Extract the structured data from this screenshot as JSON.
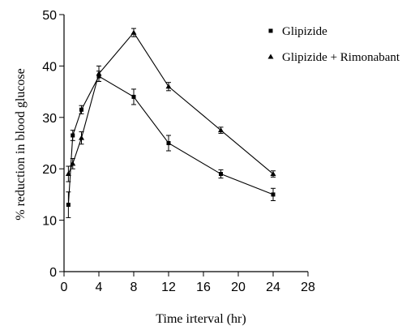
{
  "chart_data": {
    "type": "line",
    "xlabel": "Time irterval (hr)",
    "ylabel": "% reduction in blood glucose",
    "xlim": [
      0,
      28
    ],
    "ylim": [
      0,
      50
    ],
    "x_ticks": [
      0,
      4,
      8,
      12,
      16,
      20,
      24,
      28
    ],
    "y_ticks": [
      0,
      10,
      20,
      30,
      40,
      50
    ],
    "grid": false,
    "legend_position": "top-right",
    "series": [
      {
        "name": "Glipizide",
        "marker": "square",
        "x": [
          0.5,
          1,
          2,
          4,
          8,
          12,
          18,
          24
        ],
        "y": [
          13,
          26.5,
          31.5,
          38,
          34,
          25,
          19,
          15
        ],
        "error": [
          2.5,
          1,
          0.8,
          1,
          1.5,
          1.5,
          0.8,
          1.2
        ]
      },
      {
        "name": "Glipizide + Rimonabant",
        "marker": "triangle",
        "x": [
          0.5,
          1,
          2,
          4,
          8,
          12,
          18,
          24
        ],
        "y": [
          19,
          21,
          26,
          38.5,
          46.5,
          36,
          27.5,
          19
        ],
        "error": [
          1.5,
          1,
          1.2,
          1.5,
          0.8,
          0.8,
          0.6,
          0.6
        ]
      }
    ]
  }
}
